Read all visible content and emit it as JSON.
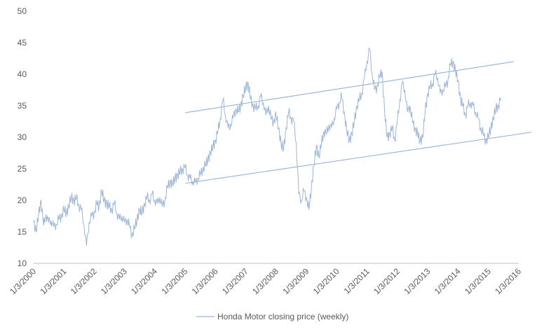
{
  "chart_data": {
    "type": "line",
    "title": "",
    "xlabel": "",
    "ylabel": "",
    "ylim": [
      10,
      50
    ],
    "xlim": [
      "2000-01-03",
      "2016-01-03"
    ],
    "yticks": [
      "10",
      "15",
      "20",
      "25",
      "30",
      "35",
      "40",
      "45",
      "50"
    ],
    "xticks": [
      "1/3/2000",
      "1/3/2001",
      "1/3/2002",
      "1/3/2003",
      "1/3/2004",
      "1/3/2005",
      "1/3/2006",
      "1/3/2007",
      "1/3/2008",
      "1/3/2009",
      "1/3/2010",
      "1/3/2011",
      "1/3/2012",
      "1/3/2013",
      "1/3/2014",
      "1/3/2015",
      "1/3/2016"
    ],
    "grid": false,
    "legend_position": "bottom",
    "colors": {
      "series": "#9db6d8",
      "trend": "#9db6d8",
      "text": "#595959",
      "axis": "#bfbfbf"
    },
    "series": [
      {
        "name": "Honda Motor closing price (weekly)",
        "points": [
          [
            "2000-01-03",
            16.5
          ],
          [
            "2000-02-01",
            15.2
          ],
          [
            "2000-03-01",
            17.5
          ],
          [
            "2000-04-01",
            20.1
          ],
          [
            "2000-05-01",
            16.0
          ],
          [
            "2000-06-01",
            17.8
          ],
          [
            "2000-07-01",
            16.5
          ],
          [
            "2000-08-01",
            16.8
          ],
          [
            "2000-09-01",
            15.8
          ],
          [
            "2000-10-01",
            16.2
          ],
          [
            "2000-11-01",
            17.0
          ],
          [
            "2000-12-01",
            17.5
          ],
          [
            "2001-01-01",
            18.5
          ],
          [
            "2001-02-01",
            18.0
          ],
          [
            "2001-03-01",
            19.0
          ],
          [
            "2001-04-01",
            20.5
          ],
          [
            "2001-05-01",
            20.0
          ],
          [
            "2001-06-01",
            20.3
          ],
          [
            "2001-07-01",
            19.2
          ],
          [
            "2001-08-01",
            18.5
          ],
          [
            "2001-09-01",
            16.0
          ],
          [
            "2001-10-01",
            12.8
          ],
          [
            "2001-11-01",
            16.5
          ],
          [
            "2001-12-01",
            17.5
          ],
          [
            "2002-01-01",
            18.0
          ],
          [
            "2002-02-01",
            19.5
          ],
          [
            "2002-03-01",
            19.0
          ],
          [
            "2002-04-01",
            21.5
          ],
          [
            "2002-05-01",
            20.0
          ],
          [
            "2002-06-01",
            19.5
          ],
          [
            "2002-07-01",
            19.0
          ],
          [
            "2002-08-01",
            18.5
          ],
          [
            "2002-09-01",
            19.5
          ],
          [
            "2002-10-01",
            18.0
          ],
          [
            "2002-11-01",
            17.0
          ],
          [
            "2002-12-01",
            17.5
          ],
          [
            "2003-01-01",
            16.5
          ],
          [
            "2003-02-01",
            17.0
          ],
          [
            "2003-03-01",
            16.0
          ],
          [
            "2003-04-01",
            14.5
          ],
          [
            "2003-05-01",
            15.5
          ],
          [
            "2003-06-01",
            17.0
          ],
          [
            "2003-07-01",
            18.5
          ],
          [
            "2003-08-01",
            18.0
          ],
          [
            "2003-09-01",
            19.5
          ],
          [
            "2003-10-01",
            20.5
          ],
          [
            "2003-11-01",
            20.0
          ],
          [
            "2003-12-01",
            21.0
          ],
          [
            "2004-01-01",
            20.0
          ],
          [
            "2004-02-01",
            19.5
          ],
          [
            "2004-03-01",
            20.5
          ],
          [
            "2004-04-01",
            19.0
          ],
          [
            "2004-05-01",
            20.0
          ],
          [
            "2004-06-01",
            22.0
          ],
          [
            "2004-07-01",
            23.0
          ],
          [
            "2004-08-01",
            22.5
          ],
          [
            "2004-09-01",
            23.5
          ],
          [
            "2004-10-01",
            24.0
          ],
          [
            "2004-11-01",
            24.5
          ],
          [
            "2004-12-01",
            25.0
          ],
          [
            "2005-01-01",
            25.2
          ],
          [
            "2005-02-01",
            24.0
          ],
          [
            "2005-03-01",
            23.5
          ],
          [
            "2005-04-01",
            23.0
          ],
          [
            "2005-05-01",
            22.8
          ],
          [
            "2005-06-01",
            23.5
          ],
          [
            "2005-07-01",
            24.0
          ],
          [
            "2005-08-01",
            25.0
          ],
          [
            "2005-09-01",
            25.5
          ],
          [
            "2005-10-01",
            26.5
          ],
          [
            "2005-11-01",
            27.5
          ],
          [
            "2005-12-01",
            28.5
          ],
          [
            "2006-01-01",
            29.5
          ],
          [
            "2006-02-01",
            31.0
          ],
          [
            "2006-03-01",
            33.0
          ],
          [
            "2006-04-01",
            36.0
          ],
          [
            "2006-05-01",
            33.5
          ],
          [
            "2006-06-01",
            31.5
          ],
          [
            "2006-07-01",
            32.0
          ],
          [
            "2006-08-01",
            33.0
          ],
          [
            "2006-09-01",
            34.5
          ],
          [
            "2006-10-01",
            34.0
          ],
          [
            "2006-11-01",
            35.0
          ],
          [
            "2006-12-01",
            36.5
          ],
          [
            "2007-01-01",
            38.0
          ],
          [
            "2007-02-01",
            38.5
          ],
          [
            "2007-03-01",
            36.0
          ],
          [
            "2007-04-01",
            35.0
          ],
          [
            "2007-05-01",
            34.5
          ],
          [
            "2007-06-01",
            35.0
          ],
          [
            "2007-07-01",
            36.5
          ],
          [
            "2007-08-01",
            35.5
          ],
          [
            "2007-09-01",
            33.5
          ],
          [
            "2007-10-01",
            35.0
          ],
          [
            "2007-11-01",
            33.0
          ],
          [
            "2007-12-01",
            32.5
          ],
          [
            "2008-01-01",
            33.5
          ],
          [
            "2008-02-01",
            31.5
          ],
          [
            "2008-03-01",
            29.0
          ],
          [
            "2008-04-01",
            28.0
          ],
          [
            "2008-05-01",
            31.5
          ],
          [
            "2008-06-01",
            34.0
          ],
          [
            "2008-07-01",
            33.0
          ],
          [
            "2008-08-01",
            32.5
          ],
          [
            "2008-09-01",
            29.0
          ],
          [
            "2008-10-01",
            21.0
          ],
          [
            "2008-11-01",
            20.0
          ],
          [
            "2008-12-01",
            21.5
          ],
          [
            "2009-01-01",
            20.5
          ],
          [
            "2009-02-01",
            18.5
          ],
          [
            "2009-03-01",
            22.0
          ],
          [
            "2009-04-01",
            25.5
          ],
          [
            "2009-05-01",
            28.5
          ],
          [
            "2009-06-01",
            27.0
          ],
          [
            "2009-07-01",
            29.0
          ],
          [
            "2009-08-01",
            31.0
          ],
          [
            "2009-09-01",
            30.5
          ],
          [
            "2009-10-01",
            32.0
          ],
          [
            "2009-11-01",
            31.5
          ],
          [
            "2009-12-01",
            33.0
          ],
          [
            "2010-01-01",
            34.5
          ],
          [
            "2010-02-01",
            35.5
          ],
          [
            "2010-03-01",
            36.5
          ],
          [
            "2010-04-01",
            34.0
          ],
          [
            "2010-05-01",
            31.0
          ],
          [
            "2010-06-01",
            29.5
          ],
          [
            "2010-07-01",
            30.5
          ],
          [
            "2010-08-01",
            32.5
          ],
          [
            "2010-09-01",
            35.0
          ],
          [
            "2010-10-01",
            36.0
          ],
          [
            "2010-11-01",
            37.0
          ],
          [
            "2010-12-01",
            39.5
          ],
          [
            "2011-01-01",
            42.0
          ],
          [
            "2011-02-01",
            44.0
          ],
          [
            "2011-03-01",
            40.5
          ],
          [
            "2011-04-01",
            37.5
          ],
          [
            "2011-05-01",
            38.0
          ],
          [
            "2011-06-01",
            39.5
          ],
          [
            "2011-07-01",
            40.5
          ],
          [
            "2011-08-01",
            34.0
          ],
          [
            "2011-09-01",
            30.0
          ],
          [
            "2011-10-01",
            30.5
          ],
          [
            "2011-11-01",
            31.5
          ],
          [
            "2011-12-01",
            29.5
          ],
          [
            "2012-01-01",
            32.5
          ],
          [
            "2012-02-01",
            36.0
          ],
          [
            "2012-03-01",
            38.5
          ],
          [
            "2012-04-01",
            37.5
          ],
          [
            "2012-05-01",
            34.0
          ],
          [
            "2012-06-01",
            35.0
          ],
          [
            "2012-07-01",
            32.5
          ],
          [
            "2012-08-01",
            31.5
          ],
          [
            "2012-09-01",
            30.5
          ],
          [
            "2012-10-01",
            29.5
          ],
          [
            "2012-11-01",
            30.0
          ],
          [
            "2012-12-01",
            34.0
          ],
          [
            "2013-01-01",
            37.0
          ],
          [
            "2013-02-01",
            38.0
          ],
          [
            "2013-03-01",
            38.5
          ],
          [
            "2013-04-01",
            40.0
          ],
          [
            "2013-05-01",
            39.5
          ],
          [
            "2013-06-01",
            37.0
          ],
          [
            "2013-07-01",
            37.5
          ],
          [
            "2013-08-01",
            38.0
          ],
          [
            "2013-09-01",
            39.0
          ],
          [
            "2013-10-01",
            41.5
          ],
          [
            "2013-11-01",
            42.0
          ],
          [
            "2013-12-01",
            40.5
          ],
          [
            "2014-01-01",
            39.0
          ],
          [
            "2014-02-01",
            36.0
          ],
          [
            "2014-03-01",
            35.0
          ],
          [
            "2014-04-01",
            33.5
          ],
          [
            "2014-05-01",
            35.0
          ],
          [
            "2014-06-01",
            35.5
          ],
          [
            "2014-07-01",
            35.0
          ],
          [
            "2014-08-01",
            34.0
          ],
          [
            "2014-09-01",
            33.0
          ],
          [
            "2014-10-01",
            31.5
          ],
          [
            "2014-11-01",
            30.5
          ],
          [
            "2014-12-01",
            29.5
          ],
          [
            "2015-01-01",
            30.0
          ],
          [
            "2015-02-01",
            31.5
          ],
          [
            "2015-03-01",
            33.0
          ],
          [
            "2015-04-01",
            34.5
          ],
          [
            "2015-05-01",
            35.0
          ],
          [
            "2015-06-01",
            36.2
          ]
        ]
      }
    ],
    "trendlines": [
      {
        "from": [
          "2005-01-03",
          33.9
        ],
        "to": [
          "2015-11-01",
          42.0
        ]
      },
      {
        "from": [
          "2005-01-03",
          22.7
        ],
        "to": [
          "2016-06-01",
          30.8
        ]
      }
    ]
  }
}
